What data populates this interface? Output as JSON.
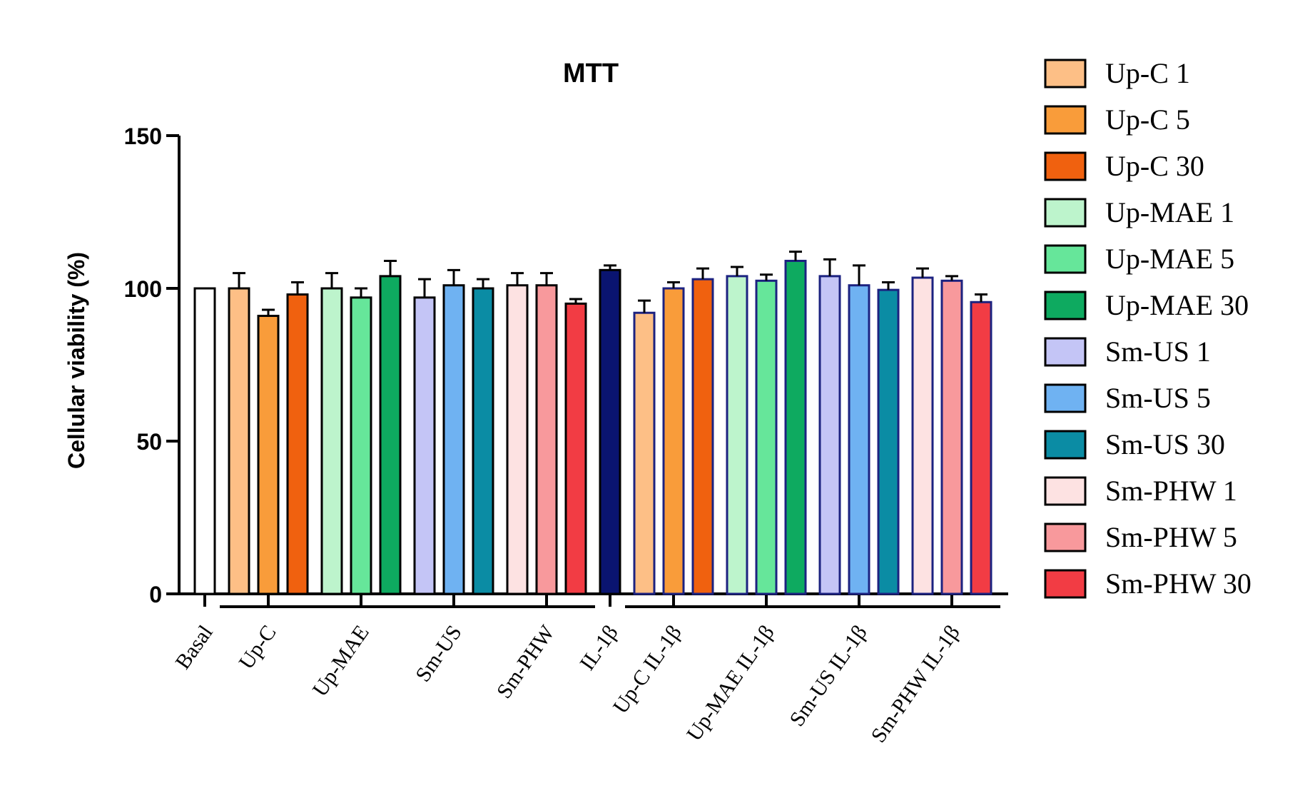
{
  "chart_data": {
    "type": "bar",
    "title": "MTT",
    "xlabel": "",
    "ylabel": "Cellular viability (%)",
    "ylim": [
      0,
      150
    ],
    "yticks": [
      0,
      50,
      100,
      150
    ],
    "grid": false,
    "legend_position": "right",
    "series": [
      {
        "name": "Up-C 1",
        "color": "#FDBF86"
      },
      {
        "name": "Up-C 5",
        "color": "#F99C3A"
      },
      {
        "name": "Up-C 30",
        "color": "#F0610F"
      },
      {
        "name": "Up-MAE 1",
        "color": "#BDF4CC"
      },
      {
        "name": "Up-MAE 5",
        "color": "#66E69A"
      },
      {
        "name": "Up-MAE 30",
        "color": "#0EAA60"
      },
      {
        "name": "Sm-US 1",
        "color": "#C4C5F6"
      },
      {
        "name": "Sm-US 5",
        "color": "#6FB2F2"
      },
      {
        "name": "Sm-US 30",
        "color": "#0B8CA4"
      },
      {
        "name": "Sm-PHW 1",
        "color": "#FDE2E2"
      },
      {
        "name": "Sm-PHW 5",
        "color": "#F8999C"
      },
      {
        "name": "Sm-PHW 30",
        "color": "#F23C44"
      }
    ],
    "groups": [
      {
        "label": "Basal",
        "bars": [
          {
            "value": 100,
            "error": 0,
            "color": "#FFFFFF",
            "edge": "#000000"
          }
        ]
      },
      {
        "label": "Up-C",
        "bars": [
          {
            "value": 100,
            "error": 5,
            "color": "#FDBF86",
            "edge": "#000000"
          },
          {
            "value": 91,
            "error": 2,
            "color": "#F99C3A",
            "edge": "#000000"
          },
          {
            "value": 98,
            "error": 4,
            "color": "#F0610F",
            "edge": "#000000"
          }
        ]
      },
      {
        "label": "Up-MAE",
        "bars": [
          {
            "value": 100,
            "error": 5,
            "color": "#BDF4CC",
            "edge": "#000000"
          },
          {
            "value": 97,
            "error": 3,
            "color": "#66E69A",
            "edge": "#000000"
          },
          {
            "value": 104,
            "error": 5,
            "color": "#0EAA60",
            "edge": "#000000"
          }
        ]
      },
      {
        "label": "Sm-US",
        "bars": [
          {
            "value": 97,
            "error": 6,
            "color": "#C4C5F6",
            "edge": "#000000"
          },
          {
            "value": 101,
            "error": 5,
            "color": "#6FB2F2",
            "edge": "#000000"
          },
          {
            "value": 100,
            "error": 3,
            "color": "#0B8CA4",
            "edge": "#000000"
          }
        ]
      },
      {
        "label": "Sm-PHW",
        "bars": [
          {
            "value": 101,
            "error": 4,
            "color": "#FDE2E2",
            "edge": "#000000"
          },
          {
            "value": 101,
            "error": 4,
            "color": "#F8999C",
            "edge": "#000000"
          },
          {
            "value": 95,
            "error": 1.5,
            "color": "#F23C44",
            "edge": "#000000"
          }
        ]
      },
      {
        "label": "IL-1β",
        "bars": [
          {
            "value": 106,
            "error": 1.5,
            "color": "#0A1470",
            "edge": "#000000"
          }
        ]
      },
      {
        "label": "Up-C IL-1β",
        "bars": [
          {
            "value": 92,
            "error": 4,
            "color": "#FDBF86",
            "edge": "#1C2280"
          },
          {
            "value": 100,
            "error": 2,
            "color": "#F99C3A",
            "edge": "#1C2280"
          },
          {
            "value": 103,
            "error": 3.5,
            "color": "#F0610F",
            "edge": "#1C2280"
          }
        ]
      },
      {
        "label": "Up-MAE IL-1β",
        "bars": [
          {
            "value": 104,
            "error": 3,
            "color": "#BDF4CC",
            "edge": "#1C2280"
          },
          {
            "value": 102.5,
            "error": 2,
            "color": "#66E69A",
            "edge": "#1C2280"
          },
          {
            "value": 109,
            "error": 3,
            "color": "#0EAA60",
            "edge": "#1C2280"
          }
        ]
      },
      {
        "label": "Sm-US IL-1β",
        "bars": [
          {
            "value": 104,
            "error": 5.5,
            "color": "#C4C5F6",
            "edge": "#1C2280"
          },
          {
            "value": 101,
            "error": 6.5,
            "color": "#6FB2F2",
            "edge": "#1C2280"
          },
          {
            "value": 99.5,
            "error": 2.5,
            "color": "#0B8CA4",
            "edge": "#1C2280"
          }
        ]
      },
      {
        "label": "Sm-PHW IL-1β",
        "bars": [
          {
            "value": 103.5,
            "error": 3,
            "color": "#FDE2E2",
            "edge": "#1C2280"
          },
          {
            "value": 102.5,
            "error": 1.5,
            "color": "#F8999C",
            "edge": "#1C2280"
          },
          {
            "value": 95.5,
            "error": 2.5,
            "color": "#F23C44",
            "edge": "#1C2280"
          }
        ]
      }
    ]
  }
}
